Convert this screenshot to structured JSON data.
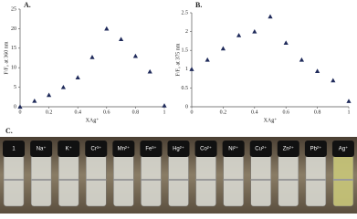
{
  "chart_data": [
    {
      "type": "scatter",
      "title": "A.",
      "ylabel": "F/F₀ at 360 nm",
      "xlabel": "XAg⁺",
      "x": [
        0,
        0.1,
        0.2,
        0.3,
        0.4,
        0.5,
        0.6,
        0.7,
        0.8,
        0.9,
        1
      ],
      "values": [
        0,
        1.5,
        3,
        5,
        7.5,
        12.7,
        20,
        17.3,
        13,
        9,
        0.3
      ],
      "color": "#1f2a5a",
      "xlim": [
        0,
        1
      ],
      "ylim": [
        0,
        25
      ],
      "xticks": [
        0,
        0.2,
        0.4,
        0.6,
        0.8,
        1
      ],
      "yticks": [
        0,
        5,
        10,
        15,
        20,
        25
      ]
    },
    {
      "type": "scatter",
      "title": "B.",
      "ylabel": "F/F₀ at 375 nm",
      "xlabel": "XAg⁺",
      "x": [
        0,
        0.1,
        0.2,
        0.3,
        0.4,
        0.5,
        0.6,
        0.7,
        0.8,
        0.9,
        1
      ],
      "values": [
        1,
        1.25,
        1.55,
        1.9,
        2,
        2.4,
        1.7,
        1.25,
        0.95,
        0.7,
        0.15
      ],
      "color": "#1f2a5a",
      "xlim": [
        0,
        1
      ],
      "ylim": [
        0,
        2.5
      ],
      "xticks": [
        0,
        0.2,
        0.4,
        0.6,
        0.8,
        1
      ],
      "yticks": [
        0,
        0.5,
        1,
        1.5,
        2,
        2.5
      ]
    }
  ],
  "panel_c": {
    "label": "C.",
    "vials": [
      "1",
      "Na⁺",
      "K⁺",
      "Cr³⁺",
      "Mn²⁺",
      "Fe³⁺",
      "Hg²⁺",
      "Co²⁺",
      "Ni²⁺",
      "Cu²⁺",
      "Zn²⁺",
      "Pb²⁺",
      "Ag⁺"
    ]
  }
}
